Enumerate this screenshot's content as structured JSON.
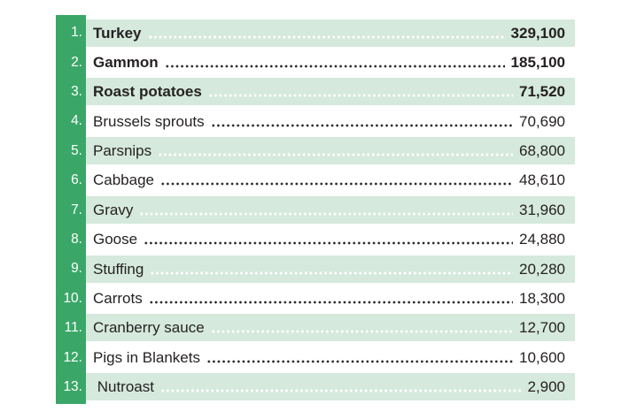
{
  "colors": {
    "rail_green": "#3aa768",
    "band_green": "#d5e9dc",
    "band_white": "#ffffff",
    "text": "#231f20",
    "dots_on_green": "#ffffff",
    "dots_on_white": "#2a2627"
  },
  "chart_data": {
    "type": "table",
    "categories": [
      "Turkey",
      "Gammon",
      "Roast potatoes",
      "Brussels sprouts",
      "Parsnips",
      "Cabbage",
      "Gravy",
      "Goose",
      "Stuffing",
      "Carrots",
      "Cranberry sauce",
      "Pigs in Blankets",
      "Nutroast"
    ],
    "values": [
      329100,
      185100,
      71520,
      70690,
      68800,
      48610,
      31960,
      24880,
      20280,
      18300,
      12700,
      10600,
      2900
    ],
    "rows": [
      {
        "rank": "1.",
        "name": "Turkey",
        "value": "329,100"
      },
      {
        "rank": "2.",
        "name": "Gammon",
        "value": "185,100"
      },
      {
        "rank": "3.",
        "name": "Roast potatoes",
        "value": "71,520"
      },
      {
        "rank": "4.",
        "name": "Brussels sprouts",
        "value": "70,690"
      },
      {
        "rank": "5.",
        "name": "Parsnips",
        "value": "68,800"
      },
      {
        "rank": "6.",
        "name": "Cabbage",
        "value": "48,610"
      },
      {
        "rank": "7.",
        "name": "Gravy",
        "value": "31,960"
      },
      {
        "rank": "8.",
        "name": "Goose",
        "value": "24,880"
      },
      {
        "rank": "9.",
        "name": "Stuffing",
        "value": "20,280"
      },
      {
        "rank": "10.",
        "name": "Carrots",
        "value": "18,300"
      },
      {
        "rank": "11.",
        "name": "Cranberry sauce",
        "value": "12,700"
      },
      {
        "rank": "12.",
        "name": "Pigs in Blankets",
        "value": "10,600"
      },
      {
        "rank": "13.",
        "name": " Nutroast",
        "value": "2,900"
      }
    ]
  }
}
